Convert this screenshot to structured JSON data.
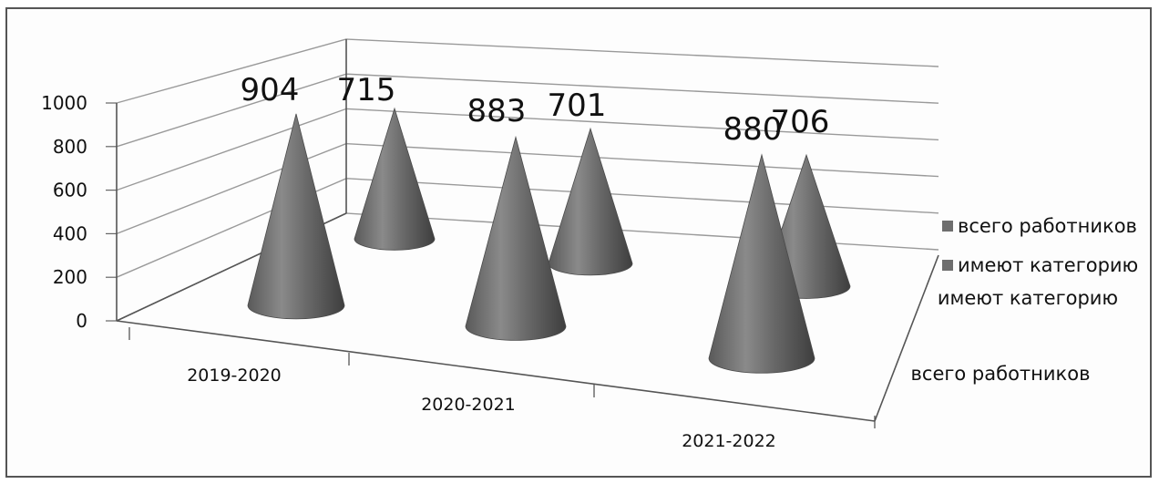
{
  "chart_data": {
    "type": "bar",
    "subtype": "3d-cone",
    "categories": [
      "2019-2020",
      "2020-2021",
      "2021-2022"
    ],
    "series": [
      {
        "name": "всего работников",
        "values": [
          904,
          883,
          880
        ]
      },
      {
        "name": "имеют категорию",
        "values": [
          715,
          701,
          706
        ]
      }
    ],
    "ylim": [
      0,
      1000
    ],
    "yticks": [
      0,
      200,
      400,
      600,
      800,
      1000
    ],
    "grid": true,
    "depth_axis_labels": [
      "имеют категорию",
      "всего работников"
    ],
    "legend": "right",
    "colors": {
      "cone": "#6e6e6e",
      "grid": "#9a9a9a",
      "text": "#111111"
    }
  }
}
